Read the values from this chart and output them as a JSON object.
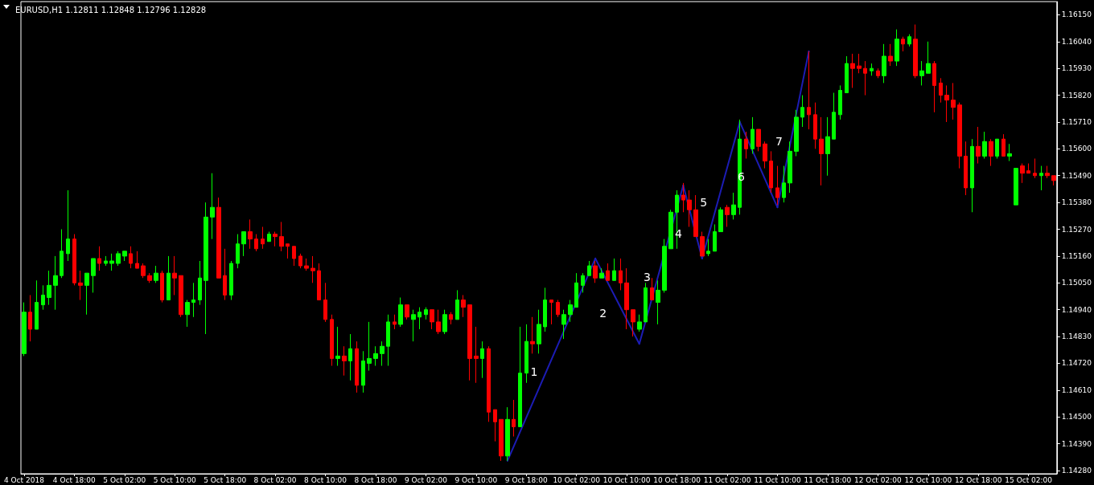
{
  "chart_data": {
    "type": "candlestick",
    "title": "EURUSD,H1 1.12811 1.12848 1.12796 1.12828",
    "categories": [
      "4 Oct 2018",
      null,
      null,
      null,
      null,
      null,
      null,
      null,
      "4 Oct 18:00",
      null,
      null,
      null,
      null,
      null,
      null,
      null,
      "5 Oct 02:00",
      null,
      null,
      null,
      null,
      null,
      null,
      null,
      "5 Oct 10:00",
      null,
      null,
      null,
      null,
      null,
      null,
      null,
      "5 Oct 18:00",
      null,
      null,
      null,
      null,
      null,
      null,
      null,
      "8 Oct 02:00",
      null,
      null,
      null,
      null,
      null,
      null,
      null,
      "8 Oct 10:00",
      null,
      null,
      null,
      null,
      null,
      null,
      null,
      "8 Oct 18:00",
      null,
      null,
      null,
      null,
      null,
      null,
      null,
      "9 Oct 02:00",
      null,
      null,
      null,
      null,
      null,
      null,
      null,
      "9 Oct 10:00",
      null,
      null,
      null,
      null,
      null,
      null,
      null,
      "9 Oct 18:00",
      null,
      null,
      null,
      null,
      null,
      null,
      null,
      "10 Oct 02:00",
      null,
      null,
      null,
      null,
      null,
      null,
      null,
      "10 Oct 10:00",
      null,
      null,
      null,
      null,
      null,
      null,
      null,
      "10 Oct 18:00",
      null,
      null,
      null,
      null,
      null,
      null,
      null,
      "11 Oct 02:00",
      null,
      null,
      null,
      null,
      null,
      null,
      null,
      "11 Oct 10:00",
      null,
      null,
      null,
      null,
      null,
      null,
      null,
      "11 Oct 18:00",
      null,
      null,
      null,
      null,
      null,
      null,
      null,
      "12 Oct 02:00",
      null,
      null,
      null,
      null,
      null,
      null,
      null,
      "12 Oct 10:00",
      null,
      null,
      null,
      null,
      null,
      null,
      null,
      "12 Oct 18:00",
      null,
      null,
      null,
      null,
      null,
      null,
      null,
      "15 Oct 02:00",
      null,
      null,
      null,
      null
    ],
    "ylim": [
      1.14267,
      1.16204
    ],
    "yticks": [
      {
        "value": 1.1428,
        "label": "1.14280"
      },
      {
        "value": 1.1439,
        "label": "1.14390"
      },
      {
        "value": 1.145,
        "label": "1.14500"
      },
      {
        "value": 1.1461,
        "label": "1.14610"
      },
      {
        "value": 1.1472,
        "label": "1.14720"
      },
      {
        "value": 1.1483,
        "label": "1.14830"
      },
      {
        "value": 1.1494,
        "label": "1.14940"
      },
      {
        "value": 1.1505,
        "label": "1.15050"
      },
      {
        "value": 1.1516,
        "label": "1.15160"
      },
      {
        "value": 1.1527,
        "label": "1.15270"
      },
      {
        "value": 1.1538,
        "label": "1.15380"
      },
      {
        "value": 1.1549,
        "label": "1.15490"
      },
      {
        "value": 1.156,
        "label": "1.15600"
      },
      {
        "value": 1.1571,
        "label": "1.15710"
      },
      {
        "value": 1.1582,
        "label": "1.15820"
      },
      {
        "value": 1.1593,
        "label": "1.15930"
      },
      {
        "value": 1.1604,
        "label": "1.16040"
      },
      {
        "value": 1.1615,
        "label": "1.16150"
      }
    ],
    "annotations": [
      "1",
      "2",
      "3",
      "4",
      "5",
      "6",
      "7"
    ],
    "ohlc": [
      [
        1.1476,
        1.1497,
        1.1475,
        1.1493
      ],
      [
        1.1493,
        1.15,
        1.1481,
        1.1486
      ],
      [
        1.1486,
        1.1506,
        1.1486,
        1.1497
      ],
      [
        1.1496,
        1.1504,
        1.1494,
        1.15
      ],
      [
        1.1499,
        1.151,
        1.1496,
        1.1504
      ],
      [
        1.1504,
        1.1516,
        1.1494,
        1.1508
      ],
      [
        1.1508,
        1.1527,
        1.1507,
        1.1518
      ],
      [
        1.1517,
        1.1543,
        1.1514,
        1.1523
      ],
      [
        1.1523,
        1.1525,
        1.1504,
        1.1505
      ],
      [
        1.1505,
        1.151,
        1.1498,
        1.1504
      ],
      [
        1.1504,
        1.1509,
        1.1492,
        1.1509
      ],
      [
        1.1508,
        1.1515,
        1.1501,
        1.1515
      ],
      [
        1.1515,
        1.152,
        1.151,
        1.1513
      ],
      [
        1.1513,
        1.1516,
        1.1512,
        1.1514
      ],
      [
        1.1513,
        1.1517,
        1.151,
        1.1514
      ],
      [
        1.1513,
        1.1518,
        1.1512,
        1.1517
      ],
      [
        1.1516,
        1.1518,
        1.1514,
        1.1518
      ],
      [
        1.1517,
        1.152,
        1.1511,
        1.1513
      ],
      [
        1.1513,
        1.1518,
        1.1511,
        1.1511
      ],
      [
        1.1512,
        1.1513,
        1.1507,
        1.1508
      ],
      [
        1.1508,
        1.1509,
        1.1505,
        1.1506
      ],
      [
        1.1506,
        1.1512,
        1.1505,
        1.1509
      ],
      [
        1.1509,
        1.151,
        1.1497,
        1.1498
      ],
      [
        1.1498,
        1.1516,
        1.1498,
        1.1509
      ],
      [
        1.1509,
        1.1516,
        1.15,
        1.1507
      ],
      [
        1.1508,
        1.1508,
        1.1491,
        1.1492
      ],
      [
        1.1492,
        1.1498,
        1.1487,
        1.1497
      ],
      [
        1.1497,
        1.1505,
        1.1491,
        1.1498
      ],
      [
        1.1498,
        1.1514,
        1.1496,
        1.1507
      ],
      [
        1.1506,
        1.1538,
        1.1484,
        1.1532
      ],
      [
        1.1532,
        1.155,
        1.1523,
        1.1536
      ],
      [
        1.1536,
        1.154,
        1.1507,
        1.1507
      ],
      [
        1.1508,
        1.1519,
        1.1498,
        1.15
      ],
      [
        1.15,
        1.1514,
        1.1498,
        1.1513
      ],
      [
        1.1513,
        1.1525,
        1.1511,
        1.1521
      ],
      [
        1.1521,
        1.1526,
        1.1516,
        1.1526
      ],
      [
        1.1526,
        1.1531,
        1.1519,
        1.1523
      ],
      [
        1.1523,
        1.1525,
        1.1518,
        1.1519
      ],
      [
        1.1523,
        1.1528,
        1.1519,
        1.1521
      ],
      [
        1.1522,
        1.1526,
        1.1522,
        1.1525
      ],
      [
        1.1525,
        1.1526,
        1.152,
        1.1524
      ],
      [
        1.1524,
        1.153,
        1.1518,
        1.152
      ],
      [
        1.1521,
        1.1521,
        1.1515,
        1.152
      ],
      [
        1.152,
        1.152,
        1.1512,
        1.1515
      ],
      [
        1.1516,
        1.1517,
        1.1511,
        1.1512
      ],
      [
        1.1512,
        1.1515,
        1.151,
        1.1511
      ],
      [
        1.1511,
        1.1516,
        1.1505,
        1.151
      ],
      [
        1.151,
        1.1513,
        1.1498,
        1.1498
      ],
      [
        1.1498,
        1.1505,
        1.1489,
        1.149
      ],
      [
        1.149,
        1.1492,
        1.1471,
        1.1474
      ],
      [
        1.1474,
        1.1487,
        1.1471,
        1.1475
      ],
      [
        1.1475,
        1.1479,
        1.1467,
        1.1473
      ],
      [
        1.1473,
        1.1484,
        1.1465,
        1.1478
      ],
      [
        1.1478,
        1.1481,
        1.146,
        1.1463
      ],
      [
        1.1463,
        1.1477,
        1.146,
        1.1473
      ],
      [
        1.1472,
        1.1489,
        1.1469,
        1.1474
      ],
      [
        1.1474,
        1.1479,
        1.1471,
        1.1476
      ],
      [
        1.1476,
        1.1481,
        1.1471,
        1.1479
      ],
      [
        1.1479,
        1.1492,
        1.1471,
        1.1489
      ],
      [
        1.1489,
        1.1492,
        1.1486,
        1.1488
      ],
      [
        1.1488,
        1.1499,
        1.1487,
        1.1496
      ],
      [
        1.1496,
        1.1496,
        1.149,
        1.1491
      ],
      [
        1.149,
        1.1494,
        1.1481,
        1.1492
      ],
      [
        1.1491,
        1.1495,
        1.1486,
        1.1493
      ],
      [
        1.1492,
        1.1495,
        1.149,
        1.1494
      ],
      [
        1.1494,
        1.1494,
        1.1486,
        1.1489
      ],
      [
        1.1489,
        1.1494,
        1.1484,
        1.1485
      ],
      [
        1.1485,
        1.1494,
        1.1484,
        1.1492
      ],
      [
        1.1492,
        1.1493,
        1.1488,
        1.149
      ],
      [
        1.149,
        1.1502,
        1.149,
        1.1498
      ],
      [
        1.1498,
        1.15,
        1.1491,
        1.1495
      ],
      [
        1.1496,
        1.1496,
        1.1465,
        1.1474
      ],
      [
        1.1475,
        1.1487,
        1.1464,
        1.1474
      ],
      [
        1.1474,
        1.1481,
        1.1466,
        1.1478
      ],
      [
        1.1478,
        1.1479,
        1.1448,
        1.1452
      ],
      [
        1.1453,
        1.1453,
        1.144,
        1.1448
      ],
      [
        1.1449,
        1.1449,
        1.1432,
        1.1434
      ],
      [
        1.1434,
        1.1454,
        1.1432,
        1.1449
      ],
      [
        1.1449,
        1.1457,
        1.1442,
        1.1446
      ],
      [
        1.1446,
        1.1487,
        1.1446,
        1.1468
      ],
      [
        1.1468,
        1.1488,
        1.1464,
        1.1481
      ],
      [
        1.1481,
        1.1491,
        1.1476,
        1.148
      ],
      [
        1.148,
        1.1494,
        1.1476,
        1.1488
      ],
      [
        1.1487,
        1.1503,
        1.1485,
        1.1498
      ],
      [
        1.1498,
        1.1498,
        1.1488,
        1.1497
      ],
      [
        1.1497,
        1.1498,
        1.1491,
        1.1492
      ],
      [
        1.1488,
        1.1494,
        1.1482,
        1.1492
      ],
      [
        1.1492,
        1.1498,
        1.1489,
        1.1496
      ],
      [
        1.1495,
        1.1509,
        1.1495,
        1.1505
      ],
      [
        1.1504,
        1.1509,
        1.1501,
        1.1508
      ],
      [
        1.1508,
        1.1514,
        1.1508,
        1.1512
      ],
      [
        1.1512,
        1.1514,
        1.1505,
        1.1507
      ],
      [
        1.1507,
        1.1511,
        1.1507,
        1.1509
      ],
      [
        1.151,
        1.1513,
        1.1506,
        1.1506
      ],
      [
        1.1506,
        1.1515,
        1.1506,
        1.151
      ],
      [
        1.151,
        1.1515,
        1.1502,
        1.1505
      ],
      [
        1.1505,
        1.1511,
        1.1486,
        1.1494
      ],
      [
        1.1494,
        1.1494,
        1.1483,
        1.1489
      ],
      [
        1.1486,
        1.1492,
        1.1485,
        1.1489
      ],
      [
        1.1489,
        1.1505,
        1.1489,
        1.1503
      ],
      [
        1.1503,
        1.1507,
        1.1498,
        1.1498
      ],
      [
        1.1497,
        1.1506,
        1.1488,
        1.1502
      ],
      [
        1.1502,
        1.1523,
        1.1501,
        1.152
      ],
      [
        1.1519,
        1.1535,
        1.1519,
        1.1534
      ],
      [
        1.1534,
        1.1543,
        1.1519,
        1.1541
      ],
      [
        1.1541,
        1.1546,
        1.1534,
        1.1539
      ],
      [
        1.1539,
        1.1543,
        1.1528,
        1.1535
      ],
      [
        1.1535,
        1.1541,
        1.1524,
        1.1524
      ],
      [
        1.1524,
        1.1526,
        1.1516,
        1.1516
      ],
      [
        1.1517,
        1.1523,
        1.1516,
        1.1518
      ],
      [
        1.1518,
        1.1529,
        1.1518,
        1.1526
      ],
      [
        1.1526,
        1.1536,
        1.1526,
        1.1535
      ],
      [
        1.1536,
        1.1537,
        1.1528,
        1.1533
      ],
      [
        1.1533,
        1.1542,
        1.1531,
        1.1537
      ],
      [
        1.1536,
        1.1572,
        1.1533,
        1.1564
      ],
      [
        1.1564,
        1.1567,
        1.1556,
        1.156
      ],
      [
        1.156,
        1.1573,
        1.1558,
        1.1568
      ],
      [
        1.1568,
        1.1568,
        1.1559,
        1.1561
      ],
      [
        1.1562,
        1.1563,
        1.1552,
        1.1555
      ],
      [
        1.1555,
        1.1559,
        1.1542,
        1.1544
      ],
      [
        1.1544,
        1.1553,
        1.1537,
        1.154
      ],
      [
        1.154,
        1.1553,
        1.1538,
        1.1546
      ],
      [
        1.1546,
        1.1563,
        1.1542,
        1.1559
      ],
      [
        1.1559,
        1.1576,
        1.1557,
        1.1573
      ],
      [
        1.1573,
        1.1582,
        1.1569,
        1.1577
      ],
      [
        1.1577,
        1.16,
        1.1568,
        1.1574
      ],
      [
        1.1574,
        1.1579,
        1.156,
        1.1564
      ],
      [
        1.1564,
        1.1573,
        1.1545,
        1.1558
      ],
      [
        1.1558,
        1.1573,
        1.1549,
        1.1565
      ],
      [
        1.1564,
        1.1583,
        1.1564,
        1.1575
      ],
      [
        1.1574,
        1.1586,
        1.1572,
        1.1584
      ],
      [
        1.1583,
        1.1598,
        1.1583,
        1.1595
      ],
      [
        1.1595,
        1.1599,
        1.1585,
        1.1593
      ],
      [
        1.1594,
        1.1599,
        1.1591,
        1.1593
      ],
      [
        1.1593,
        1.1596,
        1.1582,
        1.1591
      ],
      [
        1.1592,
        1.1595,
        1.159,
        1.1593
      ],
      [
        1.1592,
        1.1593,
        1.1589,
        1.159
      ],
      [
        1.159,
        1.1603,
        1.1587,
        1.1598
      ],
      [
        1.1598,
        1.1603,
        1.1594,
        1.1596
      ],
      [
        1.1596,
        1.1609,
        1.1594,
        1.1605
      ],
      [
        1.1605,
        1.1606,
        1.16,
        1.1603
      ],
      [
        1.1603,
        1.1607,
        1.1602,
        1.1606
      ],
      [
        1.1605,
        1.1611,
        1.1589,
        1.159
      ],
      [
        1.159,
        1.1596,
        1.1586,
        1.1592
      ],
      [
        1.1591,
        1.1604,
        1.1591,
        1.1595
      ],
      [
        1.1595,
        1.1596,
        1.1575,
        1.1586
      ],
      [
        1.1587,
        1.1589,
        1.1579,
        1.1582
      ],
      [
        1.1582,
        1.1586,
        1.1571,
        1.158
      ],
      [
        1.158,
        1.1587,
        1.1572,
        1.1577
      ],
      [
        1.1578,
        1.1579,
        1.1552,
        1.1557
      ],
      [
        1.1557,
        1.1563,
        1.1541,
        1.1544
      ],
      [
        1.1544,
        1.1564,
        1.1534,
        1.1561
      ],
      [
        1.1561,
        1.1569,
        1.1554,
        1.1557
      ],
      [
        1.1557,
        1.1567,
        1.1556,
        1.1563
      ],
      [
        1.1563,
        1.1564,
        1.1553,
        1.1557
      ],
      [
        1.1557,
        1.1564,
        1.1556,
        1.1564
      ],
      [
        1.1564,
        1.1566,
        1.1557,
        1.1557
      ],
      [
        1.1557,
        1.1562,
        1.1555,
        1.1558
      ],
      [
        1.1537,
        1.1552,
        1.1537,
        1.1552
      ],
      [
        1.1553,
        1.1554,
        1.1546,
        1.155
      ],
      [
        1.1551,
        1.1554,
        1.155,
        1.155
      ],
      [
        1.155,
        1.1556,
        1.1548,
        1.1549
      ],
      [
        1.1549,
        1.1553,
        1.1543,
        1.155
      ],
      [
        1.155,
        1.1553,
        1.1548,
        1.1549
      ],
      [
        1.1549,
        1.1549,
        1.1545,
        1.1547
      ]
    ],
    "colors": [
      "#00ff00",
      "#ff0000",
      "#00ff00",
      "#00ff00",
      "#00ff00",
      "#00ff00",
      "#00ff00",
      "#00ff00",
      "#ff0000",
      "#ff0000",
      "#00ff00",
      "#00ff00",
      "#ff0000",
      "#00ff00",
      "#00ff00",
      "#00ff00",
      "#00ff00",
      "#ff0000",
      "#ff0000",
      "#ff0000",
      "#ff0000",
      "#00ff00",
      "#ff0000",
      "#00ff00",
      "#ff0000",
      "#ff0000",
      "#00ff00",
      "#00ff00",
      "#00ff00",
      "#00ff00",
      "#00ff00",
      "#ff0000",
      "#ff0000",
      "#00ff00",
      "#00ff00",
      "#00ff00",
      "#ff0000",
      "#ff0000",
      "#ff0000",
      "#00ff00",
      "#ff0000",
      "#ff0000",
      "#ff0000",
      "#ff0000",
      "#ff0000",
      "#ff0000",
      "#ff0000",
      "#ff0000",
      "#ff0000",
      "#ff0000",
      "#00ff00",
      "#ff0000",
      "#00ff00",
      "#ff0000",
      "#00ff00",
      "#00ff00",
      "#00ff00",
      "#00ff00",
      "#00ff00",
      "#ff0000",
      "#00ff00",
      "#ff0000",
      "#00ff00",
      "#00ff00",
      "#00ff00",
      "#ff0000",
      "#ff0000",
      "#00ff00",
      "#ff0000",
      "#00ff00",
      "#ff0000",
      "#ff0000",
      "#ff0000",
      "#00ff00",
      "#ff0000",
      "#ff0000",
      "#ff0000",
      "#00ff00",
      "#ff0000",
      "#00ff00",
      "#00ff00",
      "#ff0000",
      "#00ff00",
      "#00ff00",
      "#ff0000",
      "#ff0000",
      "#00ff00",
      "#00ff00",
      "#00ff00",
      "#00ff00",
      "#00ff00",
      "#ff0000",
      "#00ff00",
      "#ff0000",
      "#00ff00",
      "#ff0000",
      "#ff0000",
      "#ff0000",
      "#00ff00",
      "#00ff00",
      "#ff0000",
      "#00ff00",
      "#00ff00",
      "#00ff00",
      "#00ff00",
      "#ff0000",
      "#ff0000",
      "#ff0000",
      "#ff0000",
      "#00ff00",
      "#00ff00",
      "#00ff00",
      "#ff0000",
      "#00ff00",
      "#00ff00",
      "#ff0000",
      "#00ff00",
      "#ff0000",
      "#ff0000",
      "#ff0000",
      "#ff0000",
      "#00ff00",
      "#00ff00",
      "#00ff00",
      "#00ff00",
      "#ff0000",
      "#ff0000",
      "#ff0000",
      "#00ff00",
      "#00ff00",
      "#00ff00",
      "#00ff00",
      "#ff0000",
      "#ff0000",
      "#ff0000",
      "#00ff00",
      "#ff0000",
      "#00ff00",
      "#ff0000",
      "#00ff00",
      "#ff0000",
      "#00ff00",
      "#ff0000",
      "#00ff00",
      "#00ff00",
      "#ff0000",
      "#ff0000",
      "#ff0000",
      "#ff0000",
      "#ff0000",
      "#ff0000",
      "#00ff00",
      "#ff0000",
      "#00ff00",
      "#ff0000",
      "#00ff00",
      "#ff0000",
      "#00ff00",
      "#00ff00",
      "#ff0000",
      "#ff0000",
      "#ff0000",
      "#00ff00",
      "#ff0000",
      "#ff0000"
    ],
    "series": [
      {
        "type": "line",
        "color": "#1c1cb4",
        "values": [
          null,
          null,
          null,
          null,
          null,
          null,
          null,
          null,
          null,
          null,
          null,
          null,
          null,
          null,
          null,
          null,
          null,
          null,
          null,
          null,
          null,
          null,
          null,
          null,
          null,
          null,
          null,
          null,
          null,
          null,
          null,
          null,
          null,
          null,
          null,
          null,
          null,
          null,
          null,
          null,
          null,
          null,
          null,
          null,
          null,
          null,
          null,
          null,
          null,
          null,
          null,
          null,
          null,
          null,
          null,
          null,
          null,
          null,
          null,
          null,
          null,
          null,
          null,
          null,
          null,
          null,
          null,
          null,
          null,
          null,
          null,
          null,
          null,
          null,
          null,
          null,
          null,
          1.1432,
          null,
          null,
          null,
          null,
          null,
          null,
          null,
          null,
          null,
          null,
          null,
          null,
          null,
          1.1515,
          null,
          null,
          null,
          null,
          null,
          null,
          1.148,
          null,
          null,
          null,
          null,
          null,
          null,
          1.1545,
          null,
          null,
          1.1515,
          null,
          null,
          null,
          null,
          null,
          1.1571,
          null,
          null,
          null,
          null,
          null,
          1.1536,
          null,
          null,
          null,
          null,
          1.16,
          null,
          null,
          null,
          null,
          null,
          null,
          null,
          null,
          null,
          null,
          null,
          null,
          null,
          null,
          null,
          null,
          null,
          null,
          null,
          null,
          null,
          null,
          null,
          null,
          null,
          null,
          null,
          null,
          null,
          null,
          null,
          null,
          null,
          null,
          null,
          null,
          null,
          null,
          null
        ]
      }
    ]
  }
}
